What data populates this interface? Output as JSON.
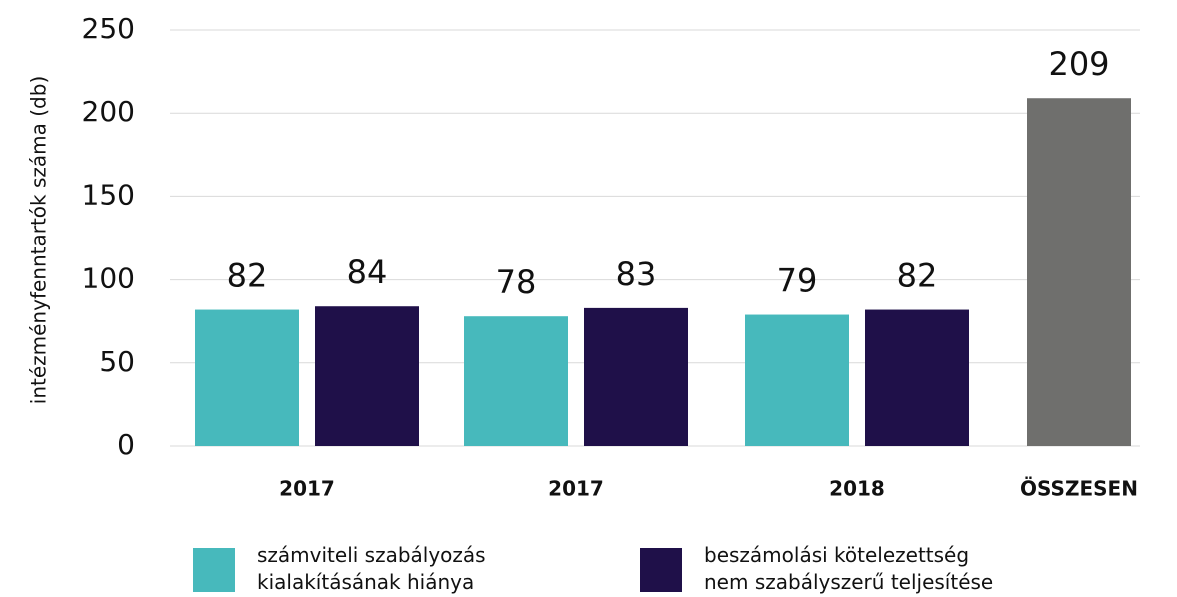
{
  "chart_data": {
    "type": "bar",
    "y_label": "intézményfenntartók száma (db)",
    "categories": [
      "2017",
      "2017",
      "2018",
      "ÖSSZESEN"
    ],
    "series": [
      {
        "name": "számviteli szabályozás kialakításának hiánya",
        "color": "#47b9bc",
        "values": [
          82,
          78,
          79,
          null
        ]
      },
      {
        "name": "beszámolási kötelezettség nem szabályszerű teljesítése",
        "color": "#1f1049",
        "values": [
          84,
          83,
          82,
          null
        ]
      },
      {
        "color": "#6f6f6d",
        "values": [
          null,
          null,
          null,
          209
        ]
      }
    ],
    "ylim": [
      0,
      250
    ],
    "yticks": [
      0,
      50,
      100,
      150,
      200,
      250
    ],
    "grid": true
  }
}
